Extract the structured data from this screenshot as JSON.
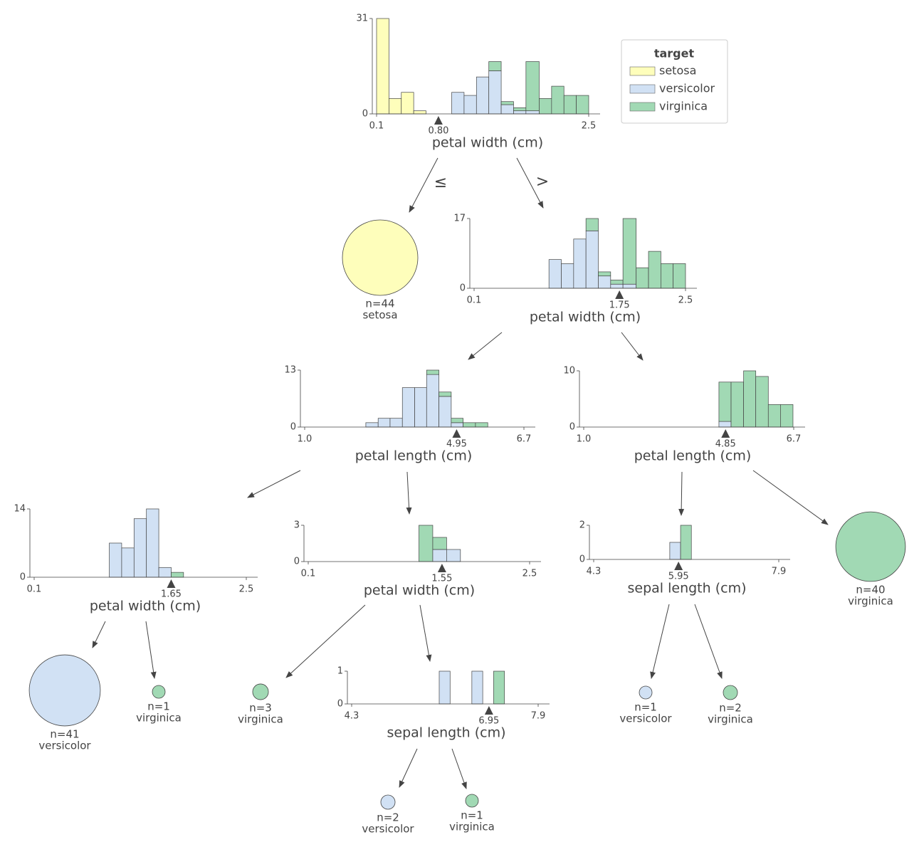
{
  "legend": {
    "title": "target",
    "classes": [
      {
        "name": "setosa",
        "color": "#fefebb"
      },
      {
        "name": "versicolor",
        "color": "#d1e1f4"
      },
      {
        "name": "virginica",
        "color": "#a1d9b4"
      }
    ]
  },
  "edge_labels": [
    "≤",
    ">"
  ],
  "split_nodes": [
    {
      "feature": "petal width (cm)",
      "xlim": [
        0.1,
        2.5
      ],
      "xticks": [
        0.1,
        2.5
      ],
      "ylim": [
        0,
        31
      ],
      "yticks": [
        0,
        31
      ],
      "split": 0.8,
      "split_label": "0.80",
      "bins": [
        0.1,
        0.24,
        0.38,
        0.52,
        0.66,
        0.81,
        0.95,
        1.09,
        1.23,
        1.37,
        1.51,
        1.65,
        1.79,
        1.94,
        2.08,
        2.22,
        2.36,
        2.5
      ],
      "counts": [
        [
          31,
          5,
          7,
          1,
          0,
          0,
          0,
          0,
          0,
          0,
          0,
          0,
          0,
          0,
          0,
          0,
          0
        ],
        [
          0,
          0,
          0,
          0,
          0,
          0,
          7,
          6,
          12,
          14,
          3,
          1,
          1,
          0,
          0,
          0,
          0
        ],
        [
          0,
          0,
          0,
          0,
          0,
          0,
          0,
          0,
          0,
          3,
          1,
          1,
          16,
          5,
          9,
          6,
          6
        ]
      ]
    },
    {
      "feature": "petal width (cm)",
      "xlim": [
        0.1,
        2.5
      ],
      "xticks": [
        0.1,
        2.5
      ],
      "ylim": [
        0,
        17
      ],
      "yticks": [
        0,
        17
      ],
      "split": 1.75,
      "split_label": "1.75",
      "bins": [
        0.1,
        0.24,
        0.38,
        0.52,
        0.66,
        0.81,
        0.95,
        1.09,
        1.23,
        1.37,
        1.51,
        1.65,
        1.79,
        1.94,
        2.08,
        2.22,
        2.36,
        2.5
      ],
      "counts": [
        [
          0,
          0,
          0,
          0,
          0,
          0,
          0,
          0,
          0,
          0,
          0,
          0,
          0,
          0,
          0,
          0,
          0
        ],
        [
          0,
          0,
          0,
          0,
          0,
          0,
          7,
          6,
          12,
          14,
          3,
          1,
          1,
          0,
          0,
          0,
          0
        ],
        [
          0,
          0,
          0,
          0,
          0,
          0,
          0,
          0,
          0,
          3,
          1,
          1,
          16,
          5,
          9,
          6,
          6
        ]
      ]
    },
    {
      "feature": "petal length (cm)",
      "xlim": [
        1,
        6.7
      ],
      "xticks": [
        {
          "value": 1,
          "label": "1.0"
        },
        6.7
      ],
      "ylim": [
        0,
        13
      ],
      "yticks": [
        0,
        13
      ],
      "split": 4.95,
      "split_label": "4.95",
      "bins": [
        2.59,
        2.91,
        3.22,
        3.54,
        3.86,
        4.17,
        4.49,
        4.81,
        5.12,
        5.44,
        5.76
      ],
      "counts": [
        [
          0,
          0,
          0,
          0,
          0,
          0,
          0,
          0,
          0,
          0
        ],
        [
          1,
          2,
          2,
          9,
          9,
          12,
          7,
          1,
          0,
          0
        ],
        [
          0,
          0,
          0,
          0,
          0,
          1,
          1,
          1,
          1,
          1
        ]
      ]
    },
    {
      "feature": "petal length (cm)",
      "xlim": [
        1,
        6.7
      ],
      "xticks": [
        {
          "value": 1,
          "label": "1.0"
        },
        6.7
      ],
      "ylim": [
        0,
        10
      ],
      "yticks": [
        0,
        10
      ],
      "split": 4.85,
      "split_label": "4.85",
      "bins": [
        4.67,
        5.0,
        5.34,
        5.67,
        6.01,
        6.34,
        6.68
      ],
      "counts": [
        [
          0,
          0,
          0,
          0,
          0,
          0
        ],
        [
          1,
          0,
          0,
          0,
          0,
          0
        ],
        [
          7,
          8,
          10,
          9,
          4,
          4
        ]
      ]
    },
    {
      "feature": "petal width (cm)",
      "xlim": [
        0.1,
        2.5
      ],
      "xticks": [
        0.1,
        2.5
      ],
      "ylim": [
        0,
        14
      ],
      "yticks": [
        0,
        14
      ],
      "split": 1.65,
      "split_label": "1.65",
      "bins": [
        0.95,
        1.09,
        1.23,
        1.37,
        1.51,
        1.65,
        1.79
      ],
      "counts": [
        [
          0,
          0,
          0,
          0,
          0,
          0
        ],
        [
          7,
          6,
          12,
          14,
          2,
          0
        ],
        [
          0,
          0,
          0,
          0,
          0,
          1
        ]
      ]
    },
    {
      "feature": "petal width (cm)",
      "xlim": [
        0.1,
        2.5
      ],
      "xticks": [
        0.1,
        2.5
      ],
      "ylim": [
        0,
        3
      ],
      "yticks": [
        0,
        3
      ],
      "split": 1.55,
      "split_label": "1.55",
      "bins": [
        1.3,
        1.45,
        1.6,
        1.75
      ],
      "counts": [
        [
          0,
          0,
          0
        ],
        [
          0,
          1,
          1
        ],
        [
          3,
          1,
          0
        ]
      ]
    },
    {
      "feature": "sepal length (cm)",
      "xlim": [
        4.3,
        7.9
      ],
      "xticks": [
        4.3,
        7.9
      ],
      "ylim": [
        0,
        2
      ],
      "yticks": [
        0,
        2
      ],
      "split": 5.95,
      "split_label": "5.95",
      "bins": [
        5.78,
        5.99,
        6.2
      ],
      "counts": [
        [
          0,
          0
        ],
        [
          1,
          0
        ],
        [
          0,
          2
        ]
      ]
    },
    {
      "feature": "sepal length (cm)",
      "xlim": [
        4.3,
        7.9
      ],
      "xticks": [
        4.3,
        7.9
      ],
      "ylim": [
        0,
        1
      ],
      "yticks": [
        0,
        1
      ],
      "split": 6.95,
      "split_label": "6.95",
      "bins": [
        5.99,
        6.2,
        6.41,
        6.62,
        6.83,
        7.04,
        7.25
      ],
      "counts": [
        [
          0,
          0,
          0,
          0,
          0,
          0
        ],
        [
          1,
          0,
          0,
          1,
          0,
          0
        ],
        [
          0,
          0,
          0,
          0,
          0,
          1
        ]
      ]
    }
  ],
  "leaves": [
    {
      "n": 44,
      "n_label": "n=44",
      "class": "setosa"
    },
    {
      "n": 40,
      "n_label": "n=40",
      "class": "virginica"
    },
    {
      "n": 41,
      "n_label": "n=41",
      "class": "versicolor"
    },
    {
      "n": 1,
      "n_label": "n=1",
      "class": "virginica"
    },
    {
      "n": 3,
      "n_label": "n=3",
      "class": "virginica"
    },
    {
      "n": 1,
      "n_label": "n=1",
      "class": "versicolor"
    },
    {
      "n": 2,
      "n_label": "n=2",
      "class": "virginica"
    },
    {
      "n": 2,
      "n_label": "n=2",
      "class": "versicolor"
    },
    {
      "n": 1,
      "n_label": "n=1",
      "class": "virginica"
    }
  ]
}
